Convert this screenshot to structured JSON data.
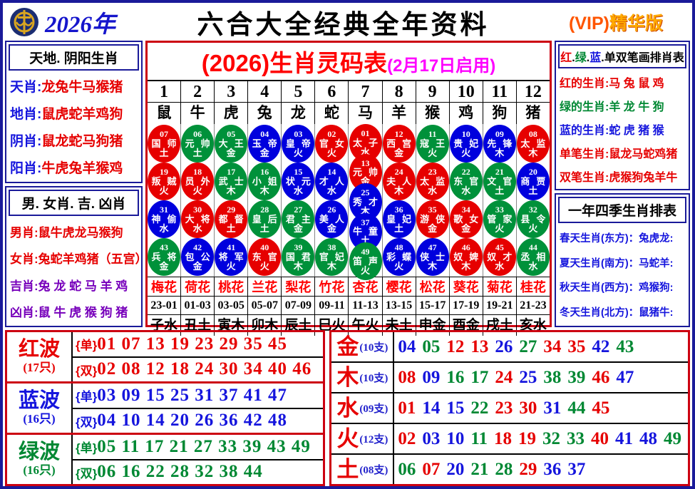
{
  "header": {
    "year": "2026年",
    "title": "六合大全经典全年资料",
    "vip_prefix": "(VIP)",
    "vip_suffix": "精华版",
    "logo": "coin-emblem-icon"
  },
  "left_top": {
    "title": "天地. 阴阳生肖",
    "rows": [
      {
        "label": "天肖",
        "value": "龙兔牛马猴猪",
        "label_color": "blue",
        "value_color": "red"
      },
      {
        "label": "地肖",
        "value": "鼠虎蛇羊鸡狗",
        "label_color": "blue",
        "value_color": "red"
      },
      {
        "label": "阴肖",
        "value": "鼠龙蛇马狗猪",
        "label_color": "blue",
        "value_color": "red"
      },
      {
        "label": "阳肖",
        "value": "牛虎兔羊猴鸡",
        "label_color": "blue",
        "value_color": "red"
      }
    ]
  },
  "left_bottom": {
    "title": "男. 女肖. 吉. 凶肖",
    "rows": [
      {
        "label": "男肖",
        "value": "鼠牛虎龙马猴狗",
        "label_color": "red",
        "value_color": "red"
      },
      {
        "label": "女肖",
        "value": "兔蛇羊鸡猪（五宫）",
        "label_color": "red",
        "value_color": "red"
      },
      {
        "label": "吉肖",
        "value": "兔 龙 蛇 马 羊 鸡",
        "label_color": "purple",
        "value_color": "purple"
      },
      {
        "label": "凶肖",
        "value": "鼠 牛 虎 猴 狗 猪",
        "label_color": "purple",
        "value_color": "purple"
      }
    ]
  },
  "right_top": {
    "title_parts": [
      {
        "text": "红",
        "color": "red"
      },
      {
        "text": ".",
        "color": "black"
      },
      {
        "text": "绿",
        "color": "green"
      },
      {
        "text": ".",
        "color": "black"
      },
      {
        "text": "蓝",
        "color": "blue"
      },
      {
        "text": ".",
        "color": "black"
      },
      {
        "text": "单双笔画排肖表",
        "color": "black"
      }
    ],
    "rows": [
      {
        "label": "红的生肖",
        "value": "马 兔 鼠 鸡",
        "label_color": "red",
        "value_color": "red"
      },
      {
        "label": "绿的生肖",
        "value": "羊 龙 牛 狗",
        "label_color": "green",
        "value_color": "green"
      },
      {
        "label": "蓝的生肖",
        "value": "蛇 虎 猪 猴",
        "label_color": "blue",
        "value_color": "blue"
      },
      {
        "label": "单笔生肖",
        "value": "鼠龙马蛇鸡猪",
        "label_color": "red",
        "value_color": "red"
      },
      {
        "label": "双笔生肖",
        "value": "虎猴狗兔羊牛",
        "label_color": "red",
        "value_color": "red"
      }
    ]
  },
  "right_bottom": {
    "title": "一年四季生肖排表",
    "rows": [
      {
        "label": "春天生肖(东方)",
        "value": "兔虎龙",
        "label_color": "blue",
        "value_color": "blue"
      },
      {
        "label": "夏天生肖(南方)",
        "value": "马蛇羊",
        "label_color": "blue",
        "value_color": "blue"
      },
      {
        "label": "秋天生肖(西方)",
        "value": "鸡猴狗",
        "label_color": "blue",
        "value_color": "blue"
      },
      {
        "label": "冬天生肖(北方)",
        "value": "鼠猪牛",
        "label_color": "blue",
        "value_color": "blue"
      }
    ]
  },
  "main_table": {
    "title": "(2026)生肖灵码表",
    "title_suffix": "(2月17日启用)",
    "numbers": [
      "1",
      "2",
      "3",
      "4",
      "5",
      "6",
      "7",
      "8",
      "9",
      "10",
      "11",
      "12"
    ],
    "zodiacs": [
      "鼠",
      "牛",
      "虎",
      "兔",
      "龙",
      "蛇",
      "马",
      "羊",
      "猴",
      "鸡",
      "狗",
      "猪"
    ],
    "ball_rows": [
      [
        {
          "num": "07",
          "name": "国师",
          "elem": "土"
        },
        {
          "num": "06",
          "name": "元帅",
          "elem": "土"
        },
        {
          "num": "05",
          "name": "大王",
          "elem": "金"
        },
        {
          "num": "04",
          "name": "玉帝",
          "elem": "金"
        },
        {
          "num": "03",
          "name": "皇帝",
          "elem": "火"
        },
        {
          "num": "02",
          "name": "官女",
          "elem": "火"
        },
        {
          "num": "12",
          "name": "西宫",
          "elem": "金"
        },
        {
          "num": "11",
          "name": "寇王",
          "elem": "火"
        },
        {
          "num": "10",
          "name": "贵妃",
          "elem": "火"
        },
        {
          "num": "09",
          "name": "先锋",
          "elem": "木"
        },
        {
          "num": "08",
          "name": "太监",
          "elem": "木"
        }
      ],
      [
        {
          "num": "19",
          "name": "叛贼",
          "elem": "火"
        },
        {
          "num": "18",
          "name": "员外",
          "elem": "火"
        },
        {
          "num": "17",
          "name": "武士",
          "elem": "木"
        },
        {
          "num": "16",
          "name": "小姐",
          "elem": "木"
        },
        {
          "num": "15",
          "name": "状元",
          "elem": "水"
        },
        {
          "num": "14",
          "name": "才人",
          "elem": "水"
        },
        {
          "num": "24",
          "name": "夫人",
          "elem": "木"
        },
        {
          "num": "23",
          "name": "太监",
          "elem": "水"
        },
        {
          "num": "22",
          "name": "东官",
          "elem": "水"
        },
        {
          "num": "21",
          "name": "文官",
          "elem": "土"
        },
        {
          "num": "20",
          "name": "商贾",
          "elem": "土"
        }
      ],
      [
        {
          "num": "31",
          "name": "神偷",
          "elem": "水"
        },
        {
          "num": "30",
          "name": "大将",
          "elem": "水"
        },
        {
          "num": "29",
          "name": "都督",
          "elem": "土"
        },
        {
          "num": "28",
          "name": "皇后",
          "elem": "土"
        },
        {
          "num": "27",
          "name": "君主",
          "elem": "金"
        },
        {
          "num": "26",
          "name": "美人",
          "elem": "金"
        },
        {
          "num": "36",
          "name": "皇妃",
          "elem": "土"
        },
        {
          "num": "35",
          "name": "游侠",
          "elem": "金"
        },
        {
          "num": "34",
          "name": "歌女",
          "elem": "金"
        },
        {
          "num": "33",
          "name": "管家",
          "elem": "火"
        },
        {
          "num": "32",
          "name": "县令",
          "elem": "火"
        }
      ],
      [
        {
          "num": "43",
          "name": "兵将",
          "elem": "金"
        },
        {
          "num": "42",
          "name": "包公",
          "elem": "金"
        },
        {
          "num": "41",
          "name": "将军",
          "elem": "火"
        },
        {
          "num": "40",
          "name": "东官",
          "elem": "火"
        },
        {
          "num": "39",
          "name": "国君",
          "elem": "木"
        },
        {
          "num": "38",
          "name": "官妃",
          "elem": "木"
        },
        {
          "num": "48",
          "name": "彩蝶",
          "elem": "火"
        },
        {
          "num": "47",
          "name": "侠士",
          "elem": "木"
        },
        {
          "num": "46",
          "name": "奴婢",
          "elem": "木"
        },
        {
          "num": "45",
          "name": "奴才",
          "elem": "水"
        },
        {
          "num": "44",
          "name": "丞相",
          "elem": "水"
        }
      ]
    ],
    "column7_balls": [
      {
        "num": "01",
        "name": "太子",
        "elem": "水"
      },
      {
        "num": "13",
        "name": "元帅",
        "elem": "金"
      },
      {
        "num": "25",
        "name": "秀才",
        "elem": "木"
      },
      {
        "num": "37",
        "name": "牛童",
        "elem": "土"
      },
      {
        "num": "49",
        "name": "笛声",
        "elem": "火"
      }
    ],
    "flowers": [
      "梅花",
      "荷花",
      "桃花",
      "兰花",
      "梨花",
      "竹花",
      "杏花",
      "樱花",
      "松花",
      "葵花",
      "菊花",
      "桂花"
    ],
    "hours": [
      "23-01",
      "01-03",
      "03-05",
      "05-07",
      "07-09",
      "09-11",
      "11-13",
      "13-15",
      "15-17",
      "17-19",
      "19-21",
      "21-23"
    ],
    "branches": [
      "子水",
      "丑土",
      "寅木",
      "卯木",
      "辰土",
      "巳火",
      "午火",
      "未土",
      "申金",
      "酉金",
      "戌土",
      "亥水"
    ]
  },
  "waves": [
    {
      "name": "红波",
      "count": "(17只)",
      "color": "red",
      "odd_label": "{单}",
      "even_label": "{双}",
      "odd": "01 07 13 19 23 29 35 45",
      "even": "02 08 12 18 24 30 34 40 46"
    },
    {
      "name": "蓝波",
      "count": "(16只)",
      "color": "blue",
      "odd_label": "{单}",
      "even_label": "{双}",
      "odd": "03 09 15 25 31 37 41 47",
      "even": "04 10 14 20 26 36 42 48"
    },
    {
      "name": "绿波",
      "count": "(16只)",
      "color": "green",
      "odd_label": "{单}",
      "even_label": "{双}",
      "odd": "05 11 17 21 27 33 39 43 49",
      "even": "06 16 22 28 32 38 44"
    }
  ],
  "elements": [
    {
      "name": "金",
      "count": "(10支)",
      "numbers": [
        "04",
        "05",
        "12",
        "13",
        "26",
        "27",
        "34",
        "35",
        "42",
        "43"
      ]
    },
    {
      "name": "木",
      "count": "(10支)",
      "numbers": [
        "08",
        "09",
        "16",
        "17",
        "24",
        "25",
        "38",
        "39",
        "46",
        "47"
      ]
    },
    {
      "name": "水",
      "count": "(09支)",
      "numbers": [
        "01",
        "14",
        "15",
        "22",
        "23",
        "30",
        "31",
        "44",
        "45"
      ]
    },
    {
      "name": "火",
      "count": "(12支)",
      "numbers": [
        "02",
        "03",
        "10",
        "11",
        "18",
        "19",
        "32",
        "33",
        "40",
        "41",
        "48",
        "49"
      ]
    },
    {
      "name": "土",
      "count": "(08支)",
      "numbers": [
        "06",
        "07",
        "20",
        "21",
        "28",
        "29",
        "36",
        "37"
      ]
    }
  ],
  "colors": {
    "red": "#e60000",
    "blue": "#1515dd",
    "green": "#008833",
    "purple": "#7700bb",
    "black": "#000000"
  }
}
